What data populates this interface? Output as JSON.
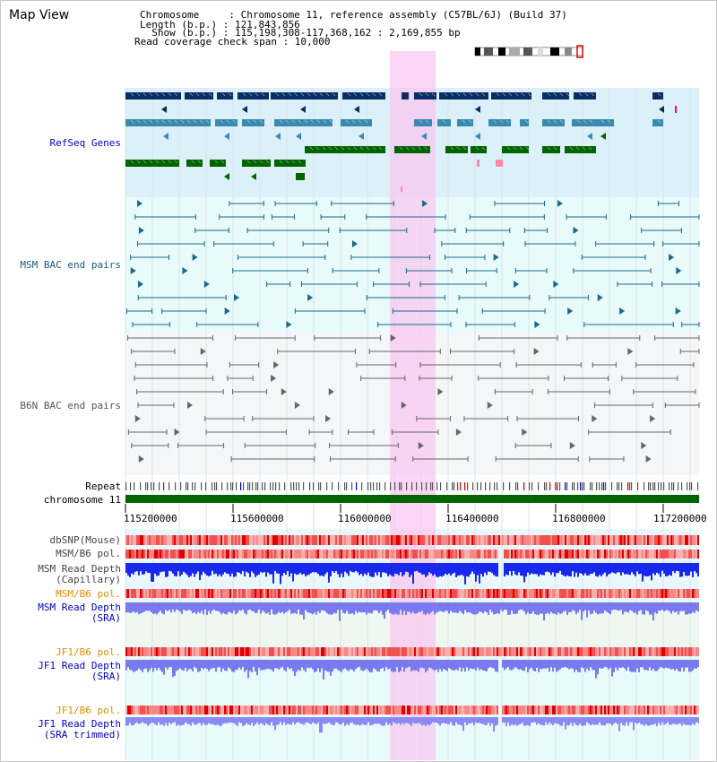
{
  "title": "Map View",
  "info": {
    "chromosome_label": "Chromosome     : Chromosome 11, reference assembly (C57BL/6J) (Build 37)",
    "length_label": "Length (b.p.) : 121,843,856",
    "show_label": "  Show (b.p.) : 115,198,308-117,368,162 : 2,169,855 bp",
    "coverage_label": "Read coverage check span : 10,000"
  },
  "tracks": {
    "refseq": "RefSeq Genes",
    "msm_bac": "MSM BAC end pairs",
    "b6n_bac": "B6N BAC end pairs",
    "repeat": "Repeat",
    "chromosome": "chromosome 11",
    "dbsnp": "dbSNP(Mouse)",
    "msm_b6_pol_1": "MSM/B6 pol.",
    "msm_read_depth_cap_1": "MSM Read Depth",
    "msm_read_depth_cap_2": "(Capillary)",
    "msm_b6_pol_2": "MSM/B6 pol.",
    "msm_read_depth_sra_1": "MSM Read Depth",
    "msm_read_depth_sra_2": "(SRA)",
    "jf1_b6_pol_1": "JF1/B6 pol.",
    "jf1_read_depth_sra_1": "JF1 Read Depth",
    "jf1_read_depth_sra_2": "(SRA)",
    "jf1_b6_pol_2": "JF1/B6 pol.",
    "jf1_read_depth_trim_1": "JF1 Read Depth",
    "jf1_read_depth_trim_2": "(SRA trimmed)"
  },
  "axis_ticks": [
    "115200000",
    "115600000",
    "116000000",
    "116400000",
    "116800000",
    "117200000"
  ],
  "colors": {
    "refseq_dark": "#0a2d64",
    "refseq_mid": "#3a8ab0",
    "refseq_green": "#006400",
    "highlight": "#f8c8f0",
    "track_blue": "#0000cc",
    "track_orange": "#e09000",
    "msm_bac_line": "#1a6a8a",
    "b6n_bac_line": "#666666"
  }
}
